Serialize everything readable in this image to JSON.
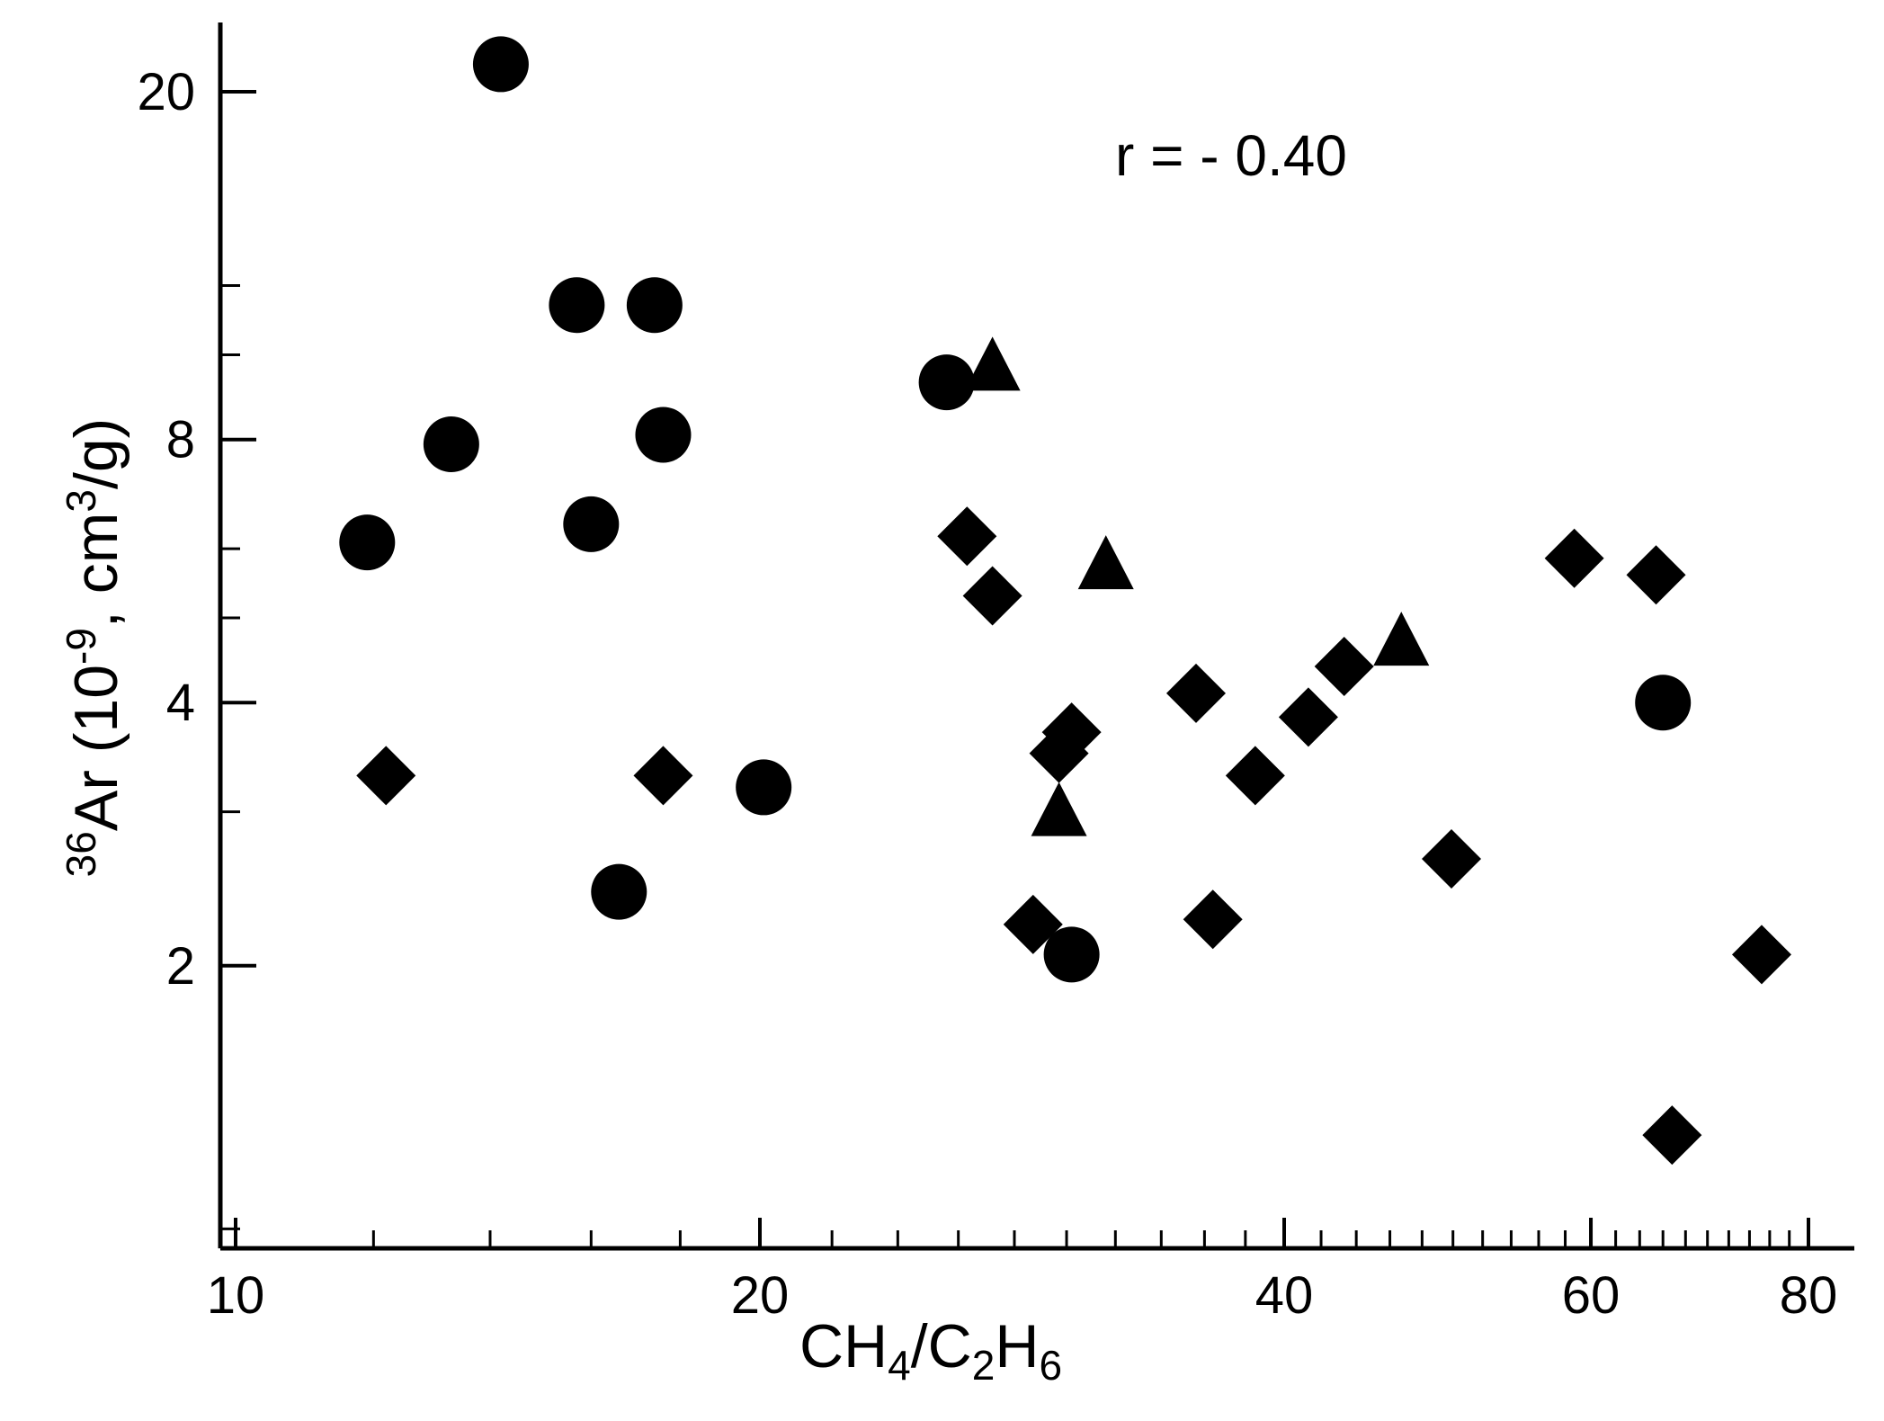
{
  "chart_data": {
    "type": "scatter",
    "x_scale": "log",
    "y_scale": "log",
    "xlim": [
      9.8,
      85
    ],
    "ylim": [
      0.95,
      24
    ],
    "x_ticks": [
      10,
      20,
      40,
      60,
      80
    ],
    "x_tick_labels": [
      "10",
      "20",
      "40",
      "60",
      "80"
    ],
    "y_ticks": [
      2,
      4,
      8,
      20
    ],
    "y_tick_labels": [
      "2",
      "4",
      "8",
      "20"
    ],
    "x_minor_ticks": [
      12,
      14,
      16,
      18,
      22,
      24,
      26,
      28,
      30,
      32,
      34,
      36,
      38,
      42,
      44,
      46,
      48,
      50,
      52,
      54,
      56,
      58,
      62,
      64,
      66,
      68,
      70,
      72,
      74,
      76,
      78
    ],
    "y_minor_ticks": [
      1,
      3,
      5,
      6,
      10,
      12
    ],
    "xlabel": {
      "main": "CH",
      "sub1": "4",
      "slash": "/C",
      "sub2": "2",
      "mid": "H",
      "sub3": "6"
    },
    "ylabel": {
      "sup_iso": "36",
      "text1": "Ar (10",
      "sup_exp": "-9",
      "text2": ", cm",
      "sup_cube": "3",
      "text3": "/g)"
    },
    "annotation": "r = - 0.40",
    "grid": false,
    "legend": "none",
    "marker_color": "#000000",
    "series": [
      {
        "marker": "circle",
        "points": [
          {
            "x": 11.9,
            "y": 6.1
          },
          {
            "x": 13.3,
            "y": 7.9
          },
          {
            "x": 14.2,
            "y": 21.5
          },
          {
            "x": 15.7,
            "y": 11.4
          },
          {
            "x": 16.0,
            "y": 6.4
          },
          {
            "x": 16.6,
            "y": 2.43
          },
          {
            "x": 17.4,
            "y": 11.4
          },
          {
            "x": 17.6,
            "y": 8.1
          },
          {
            "x": 20.1,
            "y": 3.2
          },
          {
            "x": 25.6,
            "y": 9.3
          },
          {
            "x": 30.2,
            "y": 2.06
          },
          {
            "x": 66.0,
            "y": 4.0
          }
        ]
      },
      {
        "marker": "diamond",
        "points": [
          {
            "x": 12.2,
            "y": 3.3
          },
          {
            "x": 17.6,
            "y": 3.3
          },
          {
            "x": 26.3,
            "y": 6.2
          },
          {
            "x": 27.2,
            "y": 5.3
          },
          {
            "x": 28.7,
            "y": 2.23
          },
          {
            "x": 29.7,
            "y": 3.5
          },
          {
            "x": 30.2,
            "y": 3.7
          },
          {
            "x": 35.6,
            "y": 4.1
          },
          {
            "x": 36.4,
            "y": 2.26
          },
          {
            "x": 38.5,
            "y": 3.3
          },
          {
            "x": 41.3,
            "y": 3.85
          },
          {
            "x": 43.3,
            "y": 4.4
          },
          {
            "x": 49.9,
            "y": 2.65
          },
          {
            "x": 58.7,
            "y": 5.85
          },
          {
            "x": 65.4,
            "y": 5.6
          },
          {
            "x": 66.8,
            "y": 1.28
          },
          {
            "x": 75.2,
            "y": 2.06
          }
        ]
      },
      {
        "marker": "triangle",
        "points": [
          {
            "x": 27.2,
            "y": 9.7
          },
          {
            "x": 29.7,
            "y": 3.0
          },
          {
            "x": 31.6,
            "y": 5.75
          },
          {
            "x": 46.7,
            "y": 4.7
          }
        ]
      }
    ]
  }
}
